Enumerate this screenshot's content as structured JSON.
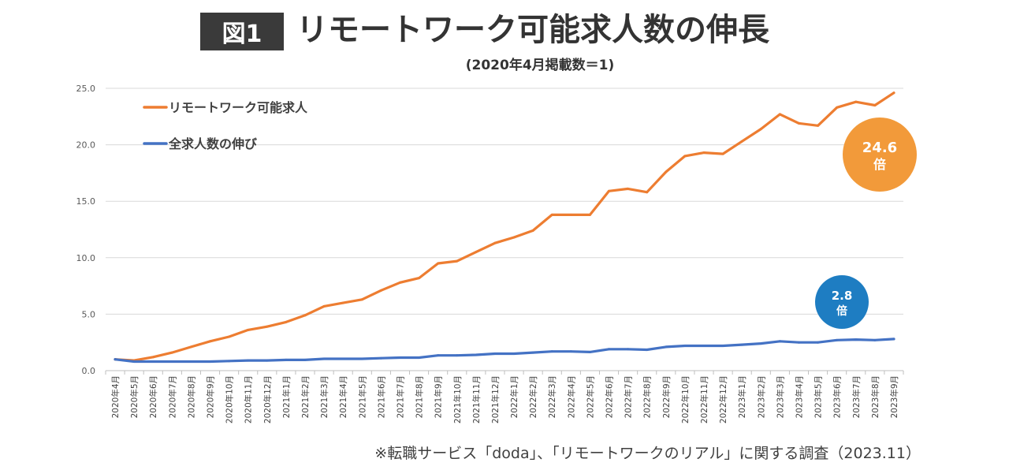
{
  "header": {
    "figure_label": "図1",
    "title": "リモートワーク可能求人数の伸長",
    "subtitle": "(2020年4月掲載数＝1)"
  },
  "chart_data": {
    "type": "line",
    "title": "リモートワーク可能求人数の伸長",
    "subtitle": "(2020年4月掲載数＝1)",
    "xlabel": "",
    "ylabel": "",
    "ylim": [
      0,
      25
    ],
    "yticks": [
      "0.0",
      "5.0",
      "10.0",
      "15.0",
      "20.0",
      "25.0"
    ],
    "grid": true,
    "legend_position": "top-left",
    "categories": [
      "2020年4月",
      "2020年5月",
      "2020年6月",
      "2020年7月",
      "2020年8月",
      "2020年9月",
      "2020年10月",
      "2020年11月",
      "2020年12月",
      "2021年1月",
      "2021年2月",
      "2021年3月",
      "2021年4月",
      "2021年5月",
      "2021年6月",
      "2021年7月",
      "2021年8月",
      "2021年9月",
      "2021年10月",
      "2021年11月",
      "2021年12月",
      "2022年1月",
      "2022年2月",
      "2022年3月",
      "2022年4月",
      "2022年5月",
      "2022年6月",
      "2022年7月",
      "2022年8月",
      "2022年9月",
      "2022年10月",
      "2022年11月",
      "2022年12月",
      "2023年1月",
      "2023年2月",
      "2023年3月",
      "2023年4月",
      "2023年5月",
      "2023年6月",
      "2023年7月",
      "2023年8月",
      "2023年9月"
    ],
    "series": [
      {
        "name": "リモートワーク可能求人",
        "color": "#ED7D31",
        "values": [
          1.0,
          0.9,
          1.2,
          1.6,
          2.1,
          2.6,
          3.0,
          3.6,
          3.9,
          4.3,
          4.9,
          5.7,
          6.0,
          6.3,
          7.1,
          7.8,
          8.2,
          9.5,
          9.7,
          10.5,
          11.3,
          11.8,
          12.4,
          13.8,
          13.8,
          13.8,
          15.9,
          16.1,
          15.8,
          17.6,
          19.0,
          19.3,
          19.2,
          20.3,
          21.4,
          22.7,
          21.9,
          21.7,
          23.3,
          23.8,
          23.5,
          24.6
        ]
      },
      {
        "name": "全求人数の伸び",
        "color": "#4472C4",
        "values": [
          1.0,
          0.8,
          0.8,
          0.8,
          0.8,
          0.8,
          0.85,
          0.9,
          0.9,
          0.95,
          0.95,
          1.05,
          1.05,
          1.05,
          1.1,
          1.15,
          1.15,
          1.35,
          1.35,
          1.4,
          1.5,
          1.5,
          1.6,
          1.7,
          1.7,
          1.65,
          1.9,
          1.9,
          1.85,
          2.1,
          2.2,
          2.2,
          2.2,
          2.3,
          2.4,
          2.6,
          2.5,
          2.5,
          2.7,
          2.75,
          2.7,
          2.8
        ]
      }
    ],
    "annotations": [
      {
        "label_value": "24.6",
        "label_unit": "倍",
        "color": "#F29A3A"
      },
      {
        "label_value": "2.8",
        "label_unit": "倍",
        "color": "#1E7DC2"
      }
    ]
  },
  "footer": {
    "source": "※転職サービス「doda」、「リモートワークのリアル」に関する調査（2023.11）"
  }
}
